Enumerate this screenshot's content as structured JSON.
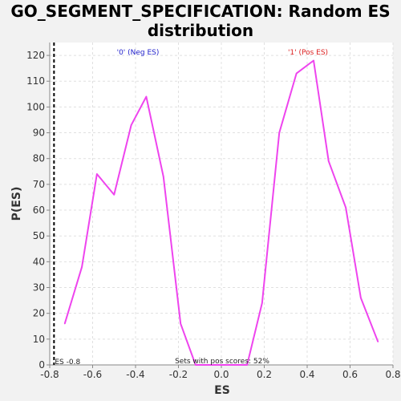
{
  "chart_data": {
    "type": "line",
    "title_line1": "GO_SEGMENT_SPECIFICATION: Random ES",
    "title_line2": "distribution",
    "xlabel": "ES",
    "ylabel": "P(ES)",
    "xlim": [
      -0.8,
      0.8
    ],
    "ylim": [
      0,
      125
    ],
    "x_ticks": [
      -0.8,
      -0.6,
      -0.4,
      -0.2,
      0.0,
      0.2,
      0.4,
      0.6,
      0.8
    ],
    "x_tick_labels": [
      "-0.8",
      "-0.6",
      "-0.4",
      "-0.2",
      "0.0",
      "0.2",
      "0.4",
      "0.6",
      "0.8"
    ],
    "y_ticks": [
      0,
      10,
      20,
      30,
      40,
      50,
      60,
      70,
      80,
      90,
      100,
      110,
      120
    ],
    "y_tick_labels": [
      "0",
      "10",
      "20",
      "30",
      "40",
      "50",
      "60",
      "70",
      "80",
      "90",
      "100",
      "110",
      "120"
    ],
    "grid": true,
    "series": [
      {
        "color": "#ee44ee",
        "x": [
          -0.73,
          -0.65,
          -0.58,
          -0.5,
          -0.42,
          -0.35,
          -0.27,
          -0.19,
          -0.12,
          0.12,
          0.19,
          0.27,
          0.35,
          0.43,
          0.5,
          0.58,
          0.65,
          0.73
        ],
        "y": [
          16,
          38,
          74,
          66,
          93,
          104,
          73,
          16,
          0,
          0,
          24,
          90,
          113,
          118,
          79,
          61,
          26,
          9
        ]
      }
    ],
    "es_marker": {
      "x": -0.78,
      "label": "ES -0.8"
    },
    "annotations": {
      "neg_label": "'0' (Neg ES)",
      "neg_color": "#2222cc",
      "pos_label": "'1' (Pos ES)",
      "pos_color": "#dd2222",
      "pos_scores": "Sets with pos scores: 52%"
    }
  }
}
